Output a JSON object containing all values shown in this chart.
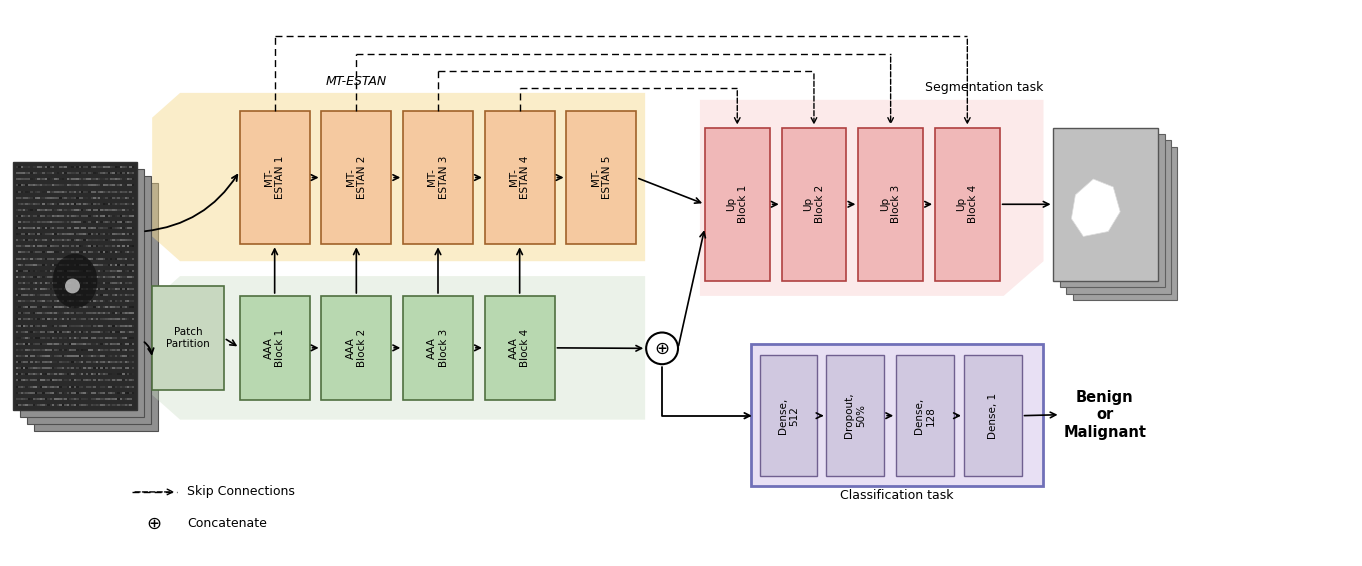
{
  "fig_width": 13.62,
  "fig_height": 5.66,
  "dpi": 100,
  "colors": {
    "mt_estan_box": "#F5C9A0",
    "mt_estan_edge": "#A0622A",
    "aaa_box": "#B8D8B0",
    "aaa_edge": "#507040",
    "patch_partition_box": "#C8D8C0",
    "patch_partition_edge": "#507040",
    "up_block_box": "#F0B8B8",
    "up_block_edge": "#B04040",
    "dense_box": "#D0C8E0",
    "dense_edge": "#706090",
    "class_outer_edge": "#7070B8",
    "class_outer_face": "#E8E0F4",
    "seg_bg": "#F8C8C8",
    "aaa_bg": "#C8DCC0",
    "mt_bg": "#F5D888"
  },
  "mt_estan_labels": [
    "MT-\nESTAN 1",
    "MT-\nESTAN 2",
    "MT-\nESTAN 3",
    "MT-\nESTAN 4",
    "MT-\nESTAN 5"
  ],
  "aaa_labels": [
    "AAA\nBlock 1",
    "AAA\nBlock 2",
    "AAA\nBlock 3",
    "AAA\nBlock 4"
  ],
  "up_block_labels": [
    "Up\nBlock 1",
    "Up\nBlock 2",
    "Up\nBlock 3",
    "Up\nBlock 4"
  ],
  "dense_labels": [
    "Dense,\n512",
    "Dropout,\n50%",
    "Dense,\n128",
    "Dense, 1"
  ],
  "legend_skip": "Skip Connections",
  "legend_concat": "Concatenate",
  "seg_task_label": "Segmentation task",
  "class_task_label": "Classification task",
  "mt_estan_group_label": "MT-ESTAN",
  "benign_label": "Benign\nor\nMalignant",
  "patch_label": "Patch\nPartition"
}
